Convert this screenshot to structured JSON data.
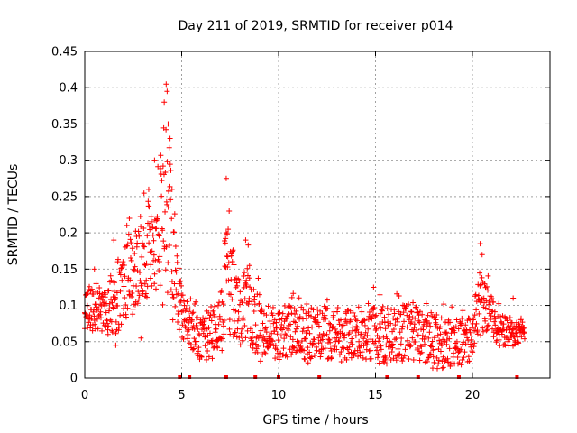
{
  "chart_data": {
    "type": "scatter",
    "title": "Day 211 of 2019, SRMTID for receiver p014",
    "xlabel": "GPS time / hours",
    "ylabel": "SRMTID / TECUs",
    "xlim": [
      0,
      24
    ],
    "ylim": [
      0,
      0.45
    ],
    "x_ticks": [
      {
        "value": 0,
        "label": "0"
      },
      {
        "value": 5,
        "label": "5"
      },
      {
        "value": 10,
        "label": "10"
      },
      {
        "value": 15,
        "label": "15"
      },
      {
        "value": 20,
        "label": "20"
      }
    ],
    "y_ticks": [
      {
        "value": 0,
        "label": "0"
      },
      {
        "value": 0.05,
        "label": "0.05"
      },
      {
        "value": 0.1,
        "label": "0.1"
      },
      {
        "value": 0.15,
        "label": "0.15"
      },
      {
        "value": 0.2,
        "label": "0.2"
      },
      {
        "value": 0.25,
        "label": "0.25"
      },
      {
        "value": 0.3,
        "label": "0.3"
      },
      {
        "value": 0.35,
        "label": "0.35"
      },
      {
        "value": 0.4,
        "label": "0.4"
      },
      {
        "value": 0.45,
        "label": "0.45"
      }
    ],
    "grid": true,
    "marker": "+",
    "series_color": "#ff0000",
    "envelope_hours": [
      0,
      0.5,
      1.0,
      1.5,
      2.0,
      2.5,
      3.0,
      3.5,
      4.0,
      4.3,
      4.7,
      5.0,
      5.5,
      6.0,
      6.5,
      7.0,
      7.3,
      7.6,
      8.0,
      8.5,
      8.9,
      9.3,
      10.0,
      11.0,
      12.0,
      13.0,
      14.0,
      15.0,
      16.0,
      17.0,
      18.0,
      19.0,
      20.0,
      20.3,
      20.7,
      21.0,
      21.5,
      22.0,
      22.7
    ],
    "envelope_low": [
      0.065,
      0.06,
      0.06,
      0.05,
      0.07,
      0.08,
      0.09,
      0.1,
      0.1,
      0.09,
      0.07,
      0.05,
      0.03,
      0.02,
      0.02,
      0.02,
      0.03,
      0.04,
      0.04,
      0.03,
      0.02,
      0.02,
      0.02,
      0.02,
      0.02,
      0.02,
      0.02,
      0.02,
      0.01,
      0.02,
      0.01,
      0.01,
      0.02,
      0.05,
      0.06,
      0.05,
      0.04,
      0.04,
      0.05
    ],
    "envelope_high": [
      0.13,
      0.15,
      0.14,
      0.18,
      0.21,
      0.24,
      0.27,
      0.3,
      0.38,
      0.4,
      0.26,
      0.14,
      0.11,
      0.1,
      0.12,
      0.14,
      0.27,
      0.22,
      0.16,
      0.19,
      0.15,
      0.12,
      0.12,
      0.12,
      0.12,
      0.12,
      0.11,
      0.12,
      0.12,
      0.13,
      0.11,
      0.1,
      0.1,
      0.18,
      0.16,
      0.13,
      0.1,
      0.09,
      0.08
    ],
    "selected_points": [
      {
        "x": 0.0,
        "y": 0.09
      },
      {
        "x": 0.3,
        "y": 0.12
      },
      {
        "x": 0.5,
        "y": 0.15
      },
      {
        "x": 1.2,
        "y": 0.06
      },
      {
        "x": 1.5,
        "y": 0.19
      },
      {
        "x": 1.6,
        "y": 0.045
      },
      {
        "x": 2.3,
        "y": 0.22
      },
      {
        "x": 2.9,
        "y": 0.055
      },
      {
        "x": 3.3,
        "y": 0.26
      },
      {
        "x": 3.6,
        "y": 0.3
      },
      {
        "x": 4.1,
        "y": 0.38
      },
      {
        "x": 4.2,
        "y": 0.405
      },
      {
        "x": 4.25,
        "y": 0.395
      },
      {
        "x": 4.3,
        "y": 0.35
      },
      {
        "x": 4.4,
        "y": 0.33
      },
      {
        "x": 4.5,
        "y": 0.26
      },
      {
        "x": 7.3,
        "y": 0.275
      },
      {
        "x": 7.45,
        "y": 0.23
      },
      {
        "x": 8.3,
        "y": 0.19
      },
      {
        "x": 8.5,
        "y": 0.155
      },
      {
        "x": 14.9,
        "y": 0.125
      },
      {
        "x": 15.5,
        "y": 0.025
      },
      {
        "x": 20.4,
        "y": 0.185
      },
      {
        "x": 20.5,
        "y": 0.17
      },
      {
        "x": 22.1,
        "y": 0.11
      },
      {
        "x": 22.5,
        "y": 0.08
      }
    ],
    "baseline_markers_hours": [
      4.9,
      5.4,
      7.3,
      8.8,
      10.0,
      12.1,
      15.6,
      17.2,
      19.3,
      22.3
    ]
  }
}
